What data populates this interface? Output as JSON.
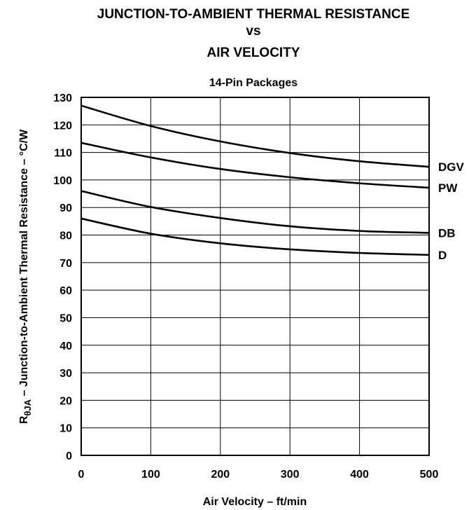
{
  "chart_data": {
    "type": "line",
    "title_lines": [
      "JUNCTION-TO-AMBIENT THERMAL RESISTANCE",
      "vs",
      "AIR VELOCITY"
    ],
    "subtitle": "14-Pin Packages",
    "xlabel": "Air Velocity – ft/min",
    "ylabel": {
      "prefix": "R",
      "subscript": "θJA",
      "text": " – Junction-to-Ambient Thermal Resistance – °C/W"
    },
    "xlim": [
      0,
      500
    ],
    "ylim": [
      0,
      130
    ],
    "xticks": [
      0,
      100,
      200,
      300,
      400,
      500
    ],
    "yticks": [
      0,
      10,
      20,
      30,
      40,
      50,
      60,
      70,
      80,
      90,
      100,
      110,
      120,
      130
    ],
    "grid": true,
    "series": [
      {
        "name": "DGV",
        "x": [
          0,
          100,
          200,
          300,
          400,
          500
        ],
        "values": [
          127,
          119.6,
          114,
          109.8,
          106.8,
          104.8
        ]
      },
      {
        "name": "PW",
        "x": [
          0,
          100,
          200,
          300,
          400,
          500
        ],
        "values": [
          113.5,
          108.2,
          104,
          101,
          98.8,
          97.2
        ]
      },
      {
        "name": "DB",
        "x": [
          0,
          100,
          200,
          300,
          400,
          500
        ],
        "values": [
          96,
          90.2,
          86.2,
          83.2,
          81.5,
          80.8
        ]
      },
      {
        "name": "D",
        "x": [
          0,
          100,
          200,
          300,
          400,
          500
        ],
        "values": [
          86,
          80.5,
          77,
          74.8,
          73.5,
          72.8
        ]
      }
    ]
  }
}
